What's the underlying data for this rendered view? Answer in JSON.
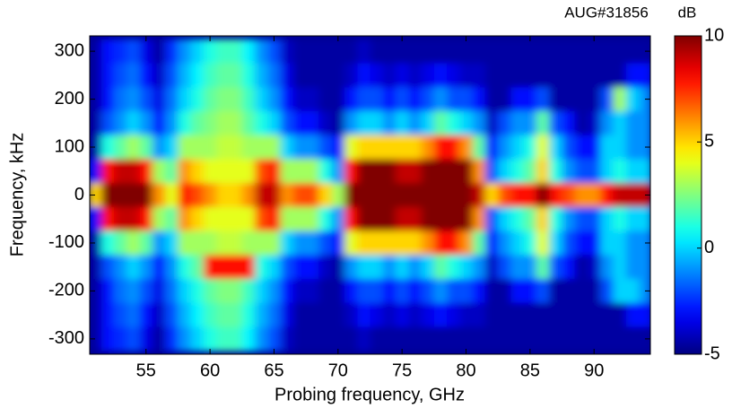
{
  "chart_data": {
    "type": "heatmap",
    "title": "AUG#31856",
    "colorbar_label": "dB",
    "xlabel": "Probing frequency, GHz",
    "ylabel": "Frequency, kHz",
    "x": [
      51,
      52,
      53,
      54,
      55,
      56,
      57,
      58,
      59,
      60,
      61,
      62,
      63,
      64,
      65,
      66,
      67,
      68,
      69,
      70,
      71,
      72,
      73,
      74,
      75,
      76,
      77,
      78,
      79,
      80,
      81,
      82,
      83,
      84,
      85,
      86,
      87,
      88,
      89,
      90,
      91,
      92,
      93,
      94
    ],
    "y": [
      300,
      250,
      200,
      150,
      100,
      50,
      0,
      -50,
      -100,
      -150,
      -200,
      -250,
      -300
    ],
    "z": [
      [
        -4.5,
        -3,
        -2.5,
        -2,
        -3.5,
        -4.5,
        -2.5,
        -1,
        0,
        1,
        1.5,
        1.5,
        0.5,
        -1,
        -2,
        -4,
        -4.5,
        -4.5,
        -4.5,
        -4.5,
        -4.5,
        -4,
        -4.5,
        -4.5,
        -4.5,
        -4.5,
        -4.5,
        -4.5,
        -4.5,
        -4.5,
        -4.5,
        -4.5,
        -4.5,
        -4.5,
        -4.5,
        -4.5,
        -4.5,
        -4.5,
        -4.5,
        -4.5,
        -4.5,
        -4.5,
        -4.5,
        -4.5
      ],
      [
        -4.5,
        -3,
        -2,
        -1.5,
        -3,
        -4,
        -2,
        -0.5,
        0.5,
        1.5,
        2,
        2,
        1,
        -0.5,
        -1.5,
        -3.5,
        -4.5,
        -4.5,
        -4.5,
        -4.5,
        -4,
        -3,
        -3.5,
        -4,
        -3.5,
        -4,
        -3.5,
        -3,
        -3.5,
        -4,
        -4,
        -4.5,
        -4.5,
        -4.5,
        -4.5,
        -4.5,
        -4.5,
        -4.5,
        -4.5,
        -4.5,
        -4.5,
        -4.5,
        -3,
        -3
      ],
      [
        -4.5,
        -3,
        -1.5,
        -1,
        -2,
        -3.5,
        -1.5,
        0,
        1,
        2,
        2.5,
        2.5,
        1.5,
        0,
        -1,
        -3,
        -4,
        -4,
        -4.5,
        -4.5,
        -3,
        -2,
        -2,
        -3,
        -2,
        -3,
        -2,
        -1,
        -2,
        -2,
        -3,
        -4.5,
        -4.5,
        -3,
        -3,
        -2,
        -4.5,
        -4.5,
        -4.5,
        -4.5,
        -2,
        3,
        0,
        -1
      ],
      [
        -4.5,
        -2,
        -1,
        0,
        -1,
        -3,
        -1,
        1,
        2,
        2.5,
        3,
        3,
        2,
        1,
        0,
        -2,
        -3,
        -3,
        -4,
        -4.5,
        -1,
        0,
        0,
        -1,
        0,
        -1,
        0,
        2,
        1,
        0,
        -1,
        -4,
        -2,
        -1,
        -1,
        2,
        -2,
        -3,
        -4.5,
        -4,
        -1,
        0,
        -1,
        -1
      ],
      [
        -4.5,
        1,
        2,
        3,
        2,
        -1,
        0,
        3,
        3,
        3,
        3.5,
        3.5,
        3,
        3,
        3,
        0,
        -1,
        -1,
        -2,
        -3,
        4,
        5,
        5,
        5,
        5,
        5,
        6,
        8,
        8,
        6,
        2,
        -3,
        -1,
        0,
        1,
        4,
        0,
        -2,
        -3,
        -3,
        0,
        0,
        -1,
        -1
      ],
      [
        -3,
        8,
        9,
        9,
        8,
        3,
        2,
        6,
        5,
        4,
        4,
        4,
        4,
        7,
        8,
        3,
        3,
        3,
        1,
        -1,
        8,
        10,
        10,
        10,
        9,
        9,
        10,
        10,
        10,
        10,
        6,
        -2,
        0,
        1,
        2,
        5,
        1,
        -1,
        -2,
        -2,
        0,
        1,
        0,
        0
      ],
      [
        5,
        10,
        10,
        10,
        10,
        6,
        4,
        8,
        7,
        6,
        5,
        5,
        6,
        9,
        9,
        6,
        7,
        7,
        5,
        3,
        10,
        10,
        10,
        10,
        10,
        10,
        10,
        10,
        10,
        10,
        9,
        5,
        7,
        8,
        8,
        10,
        8,
        7,
        6,
        6,
        8,
        9,
        9,
        9
      ],
      [
        -3,
        8,
        9,
        9,
        8,
        3,
        2,
        6,
        5,
        4,
        4,
        4,
        4,
        7,
        8,
        3,
        3,
        3,
        1,
        -1,
        8,
        10,
        10,
        10,
        9,
        9,
        10,
        10,
        10,
        10,
        6,
        -2,
        0,
        1,
        2,
        5,
        1,
        -1,
        -2,
        -2,
        0,
        1,
        0,
        0
      ],
      [
        -4.5,
        1,
        2,
        3,
        2,
        -1,
        0,
        3,
        3,
        3,
        3.5,
        3.5,
        3,
        3,
        3,
        0,
        -1,
        -1,
        -2,
        -3,
        4,
        5,
        5,
        5,
        5,
        5,
        6,
        8,
        8,
        6,
        2,
        -3,
        -1,
        0,
        1,
        4,
        0,
        -2,
        -3,
        -3,
        0,
        0,
        -1,
        -1
      ],
      [
        -4.5,
        -2,
        -1,
        0,
        -1,
        -3,
        -1,
        1,
        2,
        8,
        8,
        8,
        8,
        1,
        0,
        -2,
        -3,
        -3,
        -4,
        -4.5,
        -1,
        0,
        0,
        -1,
        0,
        -1,
        0,
        2,
        1,
        0,
        -1,
        -4,
        -2,
        -1,
        -1,
        2,
        -2,
        -3,
        -4.5,
        -4,
        -1,
        0,
        -1,
        -1
      ],
      [
        -4.5,
        -3,
        -1.5,
        -1,
        -2,
        -3.5,
        -1.5,
        0,
        1,
        2,
        2.5,
        2.5,
        1.5,
        0,
        -1,
        -3,
        -4,
        -4,
        -4.5,
        -4.5,
        -3,
        -2,
        -2,
        -3,
        -2,
        -3,
        -2,
        -1,
        -2,
        -2,
        -3,
        -4.5,
        -4.5,
        -3,
        -3,
        -2,
        -4.5,
        -4.5,
        -4.5,
        -4.5,
        -2,
        0,
        0,
        -1
      ],
      [
        -4.5,
        -3,
        -2,
        -1.5,
        -3,
        -4,
        -2,
        -0.5,
        0.5,
        1.5,
        2,
        2,
        1,
        -0.5,
        -1.5,
        -3.5,
        -4.5,
        -4.5,
        -4.5,
        -4.5,
        -4,
        -3,
        -3.5,
        -4,
        -3.5,
        -4,
        -3.5,
        -3,
        -3.5,
        -4,
        -4,
        -4.5,
        -4.5,
        -4.5,
        -4.5,
        -4.5,
        -4.5,
        -4.5,
        -4.5,
        -4.5,
        -4.5,
        -4.5,
        -3,
        -3
      ],
      [
        -4.5,
        -3,
        -2.5,
        -2,
        -3.5,
        -4.5,
        -2.5,
        -1,
        0,
        1,
        1.5,
        1.5,
        0.5,
        -1,
        -2,
        -4,
        -4.5,
        -4.5,
        -4.5,
        -4.5,
        -4.5,
        -4,
        -4.5,
        -4.5,
        -4.5,
        -4.5,
        -4.5,
        -4.5,
        -4.5,
        -4.5,
        -4.5,
        -4.5,
        -4.5,
        -4.5,
        -4.5,
        -4.5,
        -4.5,
        -4.5,
        -4.5,
        -4.5,
        -4.5,
        -4.5,
        -4.5,
        -4.5
      ]
    ],
    "xlim": [
      50.6,
      94.4
    ],
    "xticks": [
      55,
      60,
      65,
      70,
      75,
      80,
      85,
      90
    ],
    "ylim": [
      -332,
      332
    ],
    "yticks": [
      -300,
      -200,
      -100,
      0,
      100,
      200,
      300
    ],
    "clim": [
      -5,
      10
    ],
    "cticks": [
      -5,
      0,
      5,
      10
    ],
    "colormap": "jet"
  }
}
